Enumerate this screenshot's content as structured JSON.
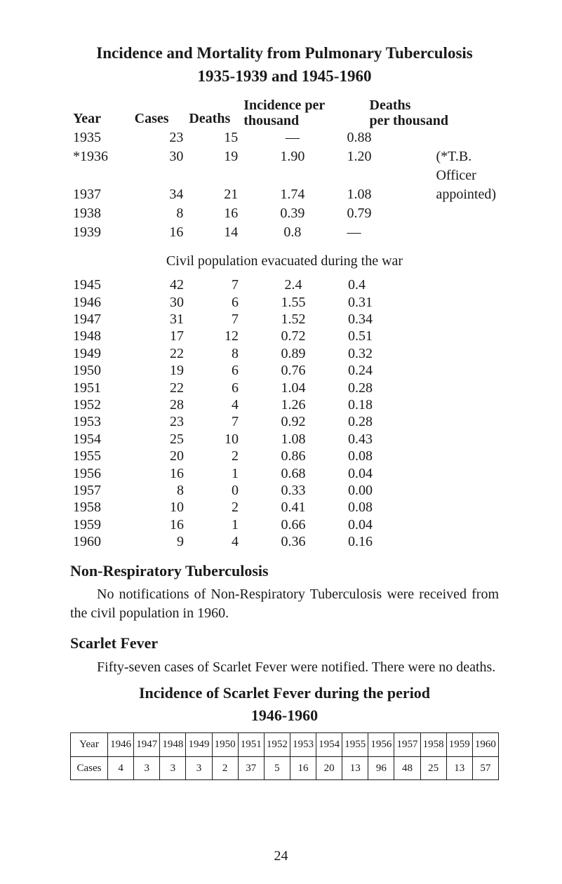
{
  "title_line1": "Incidence and Mortality from Pulmonary Tuberculosis",
  "title_line2": "1935-1939 and 1945-1960",
  "tb_header": {
    "year": "Year",
    "cases": "Cases",
    "deaths": "Deaths",
    "incidence_l1": "Incidence per",
    "incidence_l2": "thousand",
    "dpt_l1": "Deaths",
    "dpt_l2": "per thousand"
  },
  "tb_pre": [
    {
      "year": "1935",
      "cases": "23",
      "deaths": "15",
      "inc": "—",
      "dpt": "0.88",
      "note": ""
    },
    {
      "year": "*1936",
      "cases": "30",
      "deaths": "19",
      "inc": "1.90",
      "dpt": "1.20",
      "note": "(*T.B. Officer"
    },
    {
      "year": "1937",
      "cases": "34",
      "deaths": "21",
      "inc": "1.74",
      "dpt": "1.08",
      "note": "appointed)"
    },
    {
      "year": "1938",
      "cases": "8",
      "deaths": "16",
      "inc": "0.39",
      "dpt": "0.79",
      "note": ""
    },
    {
      "year": "1939",
      "cases": "16",
      "deaths": "14",
      "inc": "0.8",
      "dpt": "—",
      "note": ""
    }
  ],
  "civil_line": "Civil population evacuated during the war",
  "tb_post": [
    {
      "year": "1945",
      "cases": "42",
      "deaths": "7",
      "inc": "2.4",
      "dpt": "0.4"
    },
    {
      "year": "1946",
      "cases": "30",
      "deaths": "6",
      "inc": "1.55",
      "dpt": "0.31"
    },
    {
      "year": "1947",
      "cases": "31",
      "deaths": "7",
      "inc": "1.52",
      "dpt": "0.34"
    },
    {
      "year": "1948",
      "cases": "17",
      "deaths": "12",
      "inc": "0.72",
      "dpt": "0.51"
    },
    {
      "year": "1949",
      "cases": "22",
      "deaths": "8",
      "inc": "0.89",
      "dpt": "0.32"
    },
    {
      "year": "1950",
      "cases": "19",
      "deaths": "6",
      "inc": "0.76",
      "dpt": "0.24"
    },
    {
      "year": "1951",
      "cases": "22",
      "deaths": "6",
      "inc": "1.04",
      "dpt": "0.28"
    },
    {
      "year": "1952",
      "cases": "28",
      "deaths": "4",
      "inc": "1.26",
      "dpt": "0.18"
    },
    {
      "year": "1953",
      "cases": "23",
      "deaths": "7",
      "inc": "0.92",
      "dpt": "0.28"
    },
    {
      "year": "1954",
      "cases": "25",
      "deaths": "10",
      "inc": "1.08",
      "dpt": "0.43"
    },
    {
      "year": "1955",
      "cases": "20",
      "deaths": "2",
      "inc": "0.86",
      "dpt": "0.08"
    },
    {
      "year": "1956",
      "cases": "16",
      "deaths": "1",
      "inc": "0.68",
      "dpt": "0.04"
    },
    {
      "year": "1957",
      "cases": "8",
      "deaths": "0",
      "inc": "0.33",
      "dpt": "0.00"
    },
    {
      "year": "1958",
      "cases": "10",
      "deaths": "2",
      "inc": "0.41",
      "dpt": "0.08"
    },
    {
      "year": "1959",
      "cases": "16",
      "deaths": "1",
      "inc": "0.66",
      "dpt": "0.04"
    },
    {
      "year": "1960",
      "cases": "9",
      "deaths": "4",
      "inc": "0.36",
      "dpt": "0.16"
    }
  ],
  "nrt_heading": "Non-Respiratory Tuberculosis",
  "nrt_para": "No notifications of Non-Respiratory Tuberculosis were received from the civil population in 1960.",
  "sf_heading": "Scarlet Fever",
  "sf_para": "Fifty-seven cases of Scarlet Fever were notified. There were no deaths.",
  "sf_title1": "Incidence of Scarlet Fever during the period",
  "sf_title2": "1946-1960",
  "sf_table": {
    "row_year_label": "Year",
    "row_cases_label": "Cases",
    "years": [
      "1946",
      "1947",
      "1948",
      "1949",
      "1950",
      "1951",
      "1952",
      "1953",
      "1954",
      "1955",
      "1956",
      "1957",
      "1958",
      "1959",
      "1960"
    ],
    "cases": [
      "4",
      "3",
      "3",
      "3",
      "2",
      "37",
      "5",
      "16",
      "20",
      "13",
      "96",
      "48",
      "25",
      "13",
      "57"
    ]
  },
  "page_number": "24",
  "colors": {
    "text": "#1a1a1a",
    "background": "#ffffff",
    "border": "#1a1a1a"
  },
  "fonts": {
    "body_pt": 20,
    "title_pt": 23,
    "sftab_pt": 15,
    "family": "serif"
  }
}
